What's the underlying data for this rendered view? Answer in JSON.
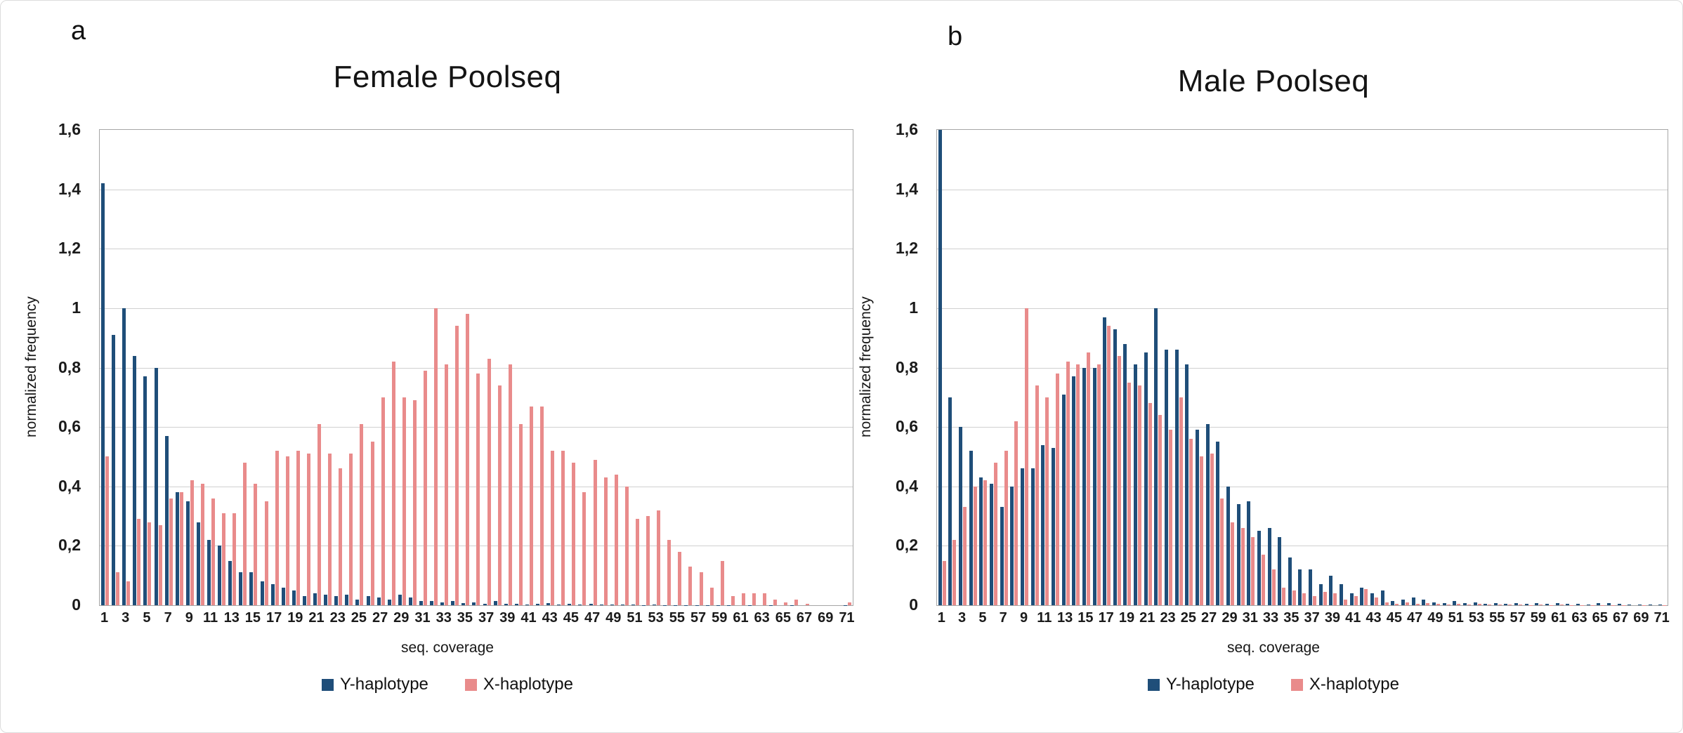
{
  "panels": [
    {
      "letter": "a"
    },
    {
      "letter": "b"
    }
  ],
  "legend": {
    "y_label": "Y-haplotype",
    "x_label": "X-haplotype"
  },
  "colors": {
    "y_haplotype": "#1f4e79",
    "x_haplotype": "#e98b8b",
    "gridline": "#d0d0d0",
    "axis_border": "#a6a6a6",
    "text": "#1a1a1a"
  },
  "axes": {
    "y_title": "normalized frequency",
    "x_title": "seq. coverage",
    "y_ticks": [
      "1,6",
      "1,4",
      "1,2",
      "1",
      "0,8",
      "0,6",
      "0,4",
      "0,2",
      "0"
    ]
  },
  "chart_data": [
    {
      "type": "bar",
      "panel": "a",
      "title": "Female Poolseq",
      "xlabel": "seq. coverage",
      "ylabel": "normalized frequency",
      "ylim": [
        0,
        1.6
      ],
      "x_range": [
        1,
        71
      ],
      "x_tick_labels": [
        1,
        3,
        5,
        7,
        9,
        11,
        13,
        15,
        17,
        19,
        21,
        23,
        25,
        27,
        29,
        31,
        33,
        35,
        37,
        39,
        41,
        43,
        45,
        47,
        49,
        51,
        53,
        55,
        57,
        59,
        61,
        63,
        65,
        67,
        69,
        71
      ],
      "grid": "horizontal",
      "legend_position": "bottom",
      "series": [
        {
          "name": "Y-haplotype",
          "color": "#1f4e79",
          "values": [
            1.42,
            0.91,
            1.0,
            0.84,
            0.77,
            0.8,
            0.57,
            0.38,
            0.35,
            0.28,
            0.22,
            0.2,
            0.15,
            0.11,
            0.11,
            0.08,
            0.07,
            0.06,
            0.05,
            0.03,
            0.04,
            0.035,
            0.03,
            0.035,
            0.02,
            0.03,
            0.025,
            0.02,
            0.035,
            0.025,
            0.015,
            0.015,
            0.01,
            0.015,
            0.008,
            0.01,
            0.005,
            0.015,
            0.005,
            0.005,
            0.003,
            0.005,
            0.008,
            0.003,
            0.005,
            0.003,
            0.005,
            0.002,
            0.002,
            0.002,
            0.002,
            0.001,
            0.002,
            0.001,
            0.001,
            0.001,
            0.001,
            0.001,
            0.001,
            0.001,
            0,
            0.001,
            0,
            0.001,
            0,
            0.001,
            0,
            0,
            0,
            0,
            0.001
          ]
        },
        {
          "name": "X-haplotype",
          "color": "#e98b8b",
          "values": [
            0.5,
            0.11,
            0.08,
            0.29,
            0.28,
            0.27,
            0.36,
            0.38,
            0.42,
            0.41,
            0.36,
            0.31,
            0.31,
            0.48,
            0.41,
            0.35,
            0.52,
            0.5,
            0.52,
            0.51,
            0.61,
            0.51,
            0.46,
            0.51,
            0.61,
            0.55,
            0.7,
            0.82,
            0.7,
            0.69,
            0.79,
            1.0,
            0.81,
            0.94,
            0.98,
            0.78,
            0.83,
            0.74,
            0.81,
            0.61,
            0.67,
            0.67,
            0.52,
            0.52,
            0.48,
            0.38,
            0.49,
            0.43,
            0.44,
            0.4,
            0.29,
            0.3,
            0.32,
            0.22,
            0.18,
            0.13,
            0.11,
            0.06,
            0.15,
            0.03,
            0.04,
            0.04,
            0.04,
            0.02,
            0.01,
            0.02,
            0.005,
            0,
            0,
            0,
            0.01
          ]
        }
      ]
    },
    {
      "type": "bar",
      "panel": "b",
      "title": "Male Poolseq",
      "xlabel": "seq. coverage",
      "ylabel": "normalized frequency",
      "ylim": [
        0,
        1.6
      ],
      "x_range": [
        1,
        71
      ],
      "x_tick_labels": [
        1,
        3,
        5,
        7,
        9,
        11,
        13,
        15,
        17,
        19,
        21,
        23,
        25,
        27,
        29,
        31,
        33,
        35,
        37,
        39,
        41,
        43,
        45,
        47,
        49,
        51,
        53,
        55,
        57,
        59,
        61,
        63,
        65,
        67,
        69,
        71
      ],
      "grid": "horizontal",
      "legend_position": "bottom",
      "series": [
        {
          "name": "Y-haplotype",
          "color": "#1f4e79",
          "values": [
            1.6,
            0.7,
            0.6,
            0.52,
            0.43,
            0.41,
            0.33,
            0.4,
            0.46,
            0.46,
            0.54,
            0.53,
            0.71,
            0.77,
            0.8,
            0.8,
            0.97,
            0.93,
            0.88,
            0.81,
            0.85,
            1.0,
            0.86,
            0.86,
            0.81,
            0.59,
            0.61,
            0.55,
            0.4,
            0.34,
            0.35,
            0.25,
            0.26,
            0.23,
            0.16,
            0.12,
            0.12,
            0.07,
            0.1,
            0.07,
            0.04,
            0.06,
            0.04,
            0.05,
            0.015,
            0.02,
            0.025,
            0.02,
            0.01,
            0.008,
            0.015,
            0.007,
            0.01,
            0.005,
            0.008,
            0.005,
            0.007,
            0.005,
            0.006,
            0.004,
            0.006,
            0.004,
            0.005,
            0.003,
            0.006,
            0.008,
            0.004,
            0.002,
            0.003,
            0.002,
            0.003
          ]
        },
        {
          "name": "X-haplotype",
          "color": "#e98b8b",
          "values": [
            0.15,
            0.22,
            0.33,
            0.4,
            0.42,
            0.48,
            0.52,
            0.62,
            1.0,
            0.74,
            0.7,
            0.78,
            0.82,
            0.81,
            0.85,
            0.81,
            0.94,
            0.84,
            0.75,
            0.74,
            0.68,
            0.64,
            0.59,
            0.7,
            0.56,
            0.5,
            0.51,
            0.36,
            0.28,
            0.26,
            0.23,
            0.17,
            0.12,
            0.06,
            0.05,
            0.04,
            0.03,
            0.045,
            0.04,
            0.02,
            0.03,
            0.055,
            0.025,
            0.01,
            0.005,
            0.01,
            0.005,
            0.008,
            0.004,
            0.003,
            0.005,
            0.003,
            0.004,
            0.002,
            0.003,
            0.002,
            0.002,
            0.001,
            0.002,
            0.001,
            0.002,
            0.001,
            0.001,
            0.001,
            0.001,
            0.001,
            0.001,
            0,
            0.001,
            0,
            0.001
          ]
        }
      ]
    }
  ]
}
